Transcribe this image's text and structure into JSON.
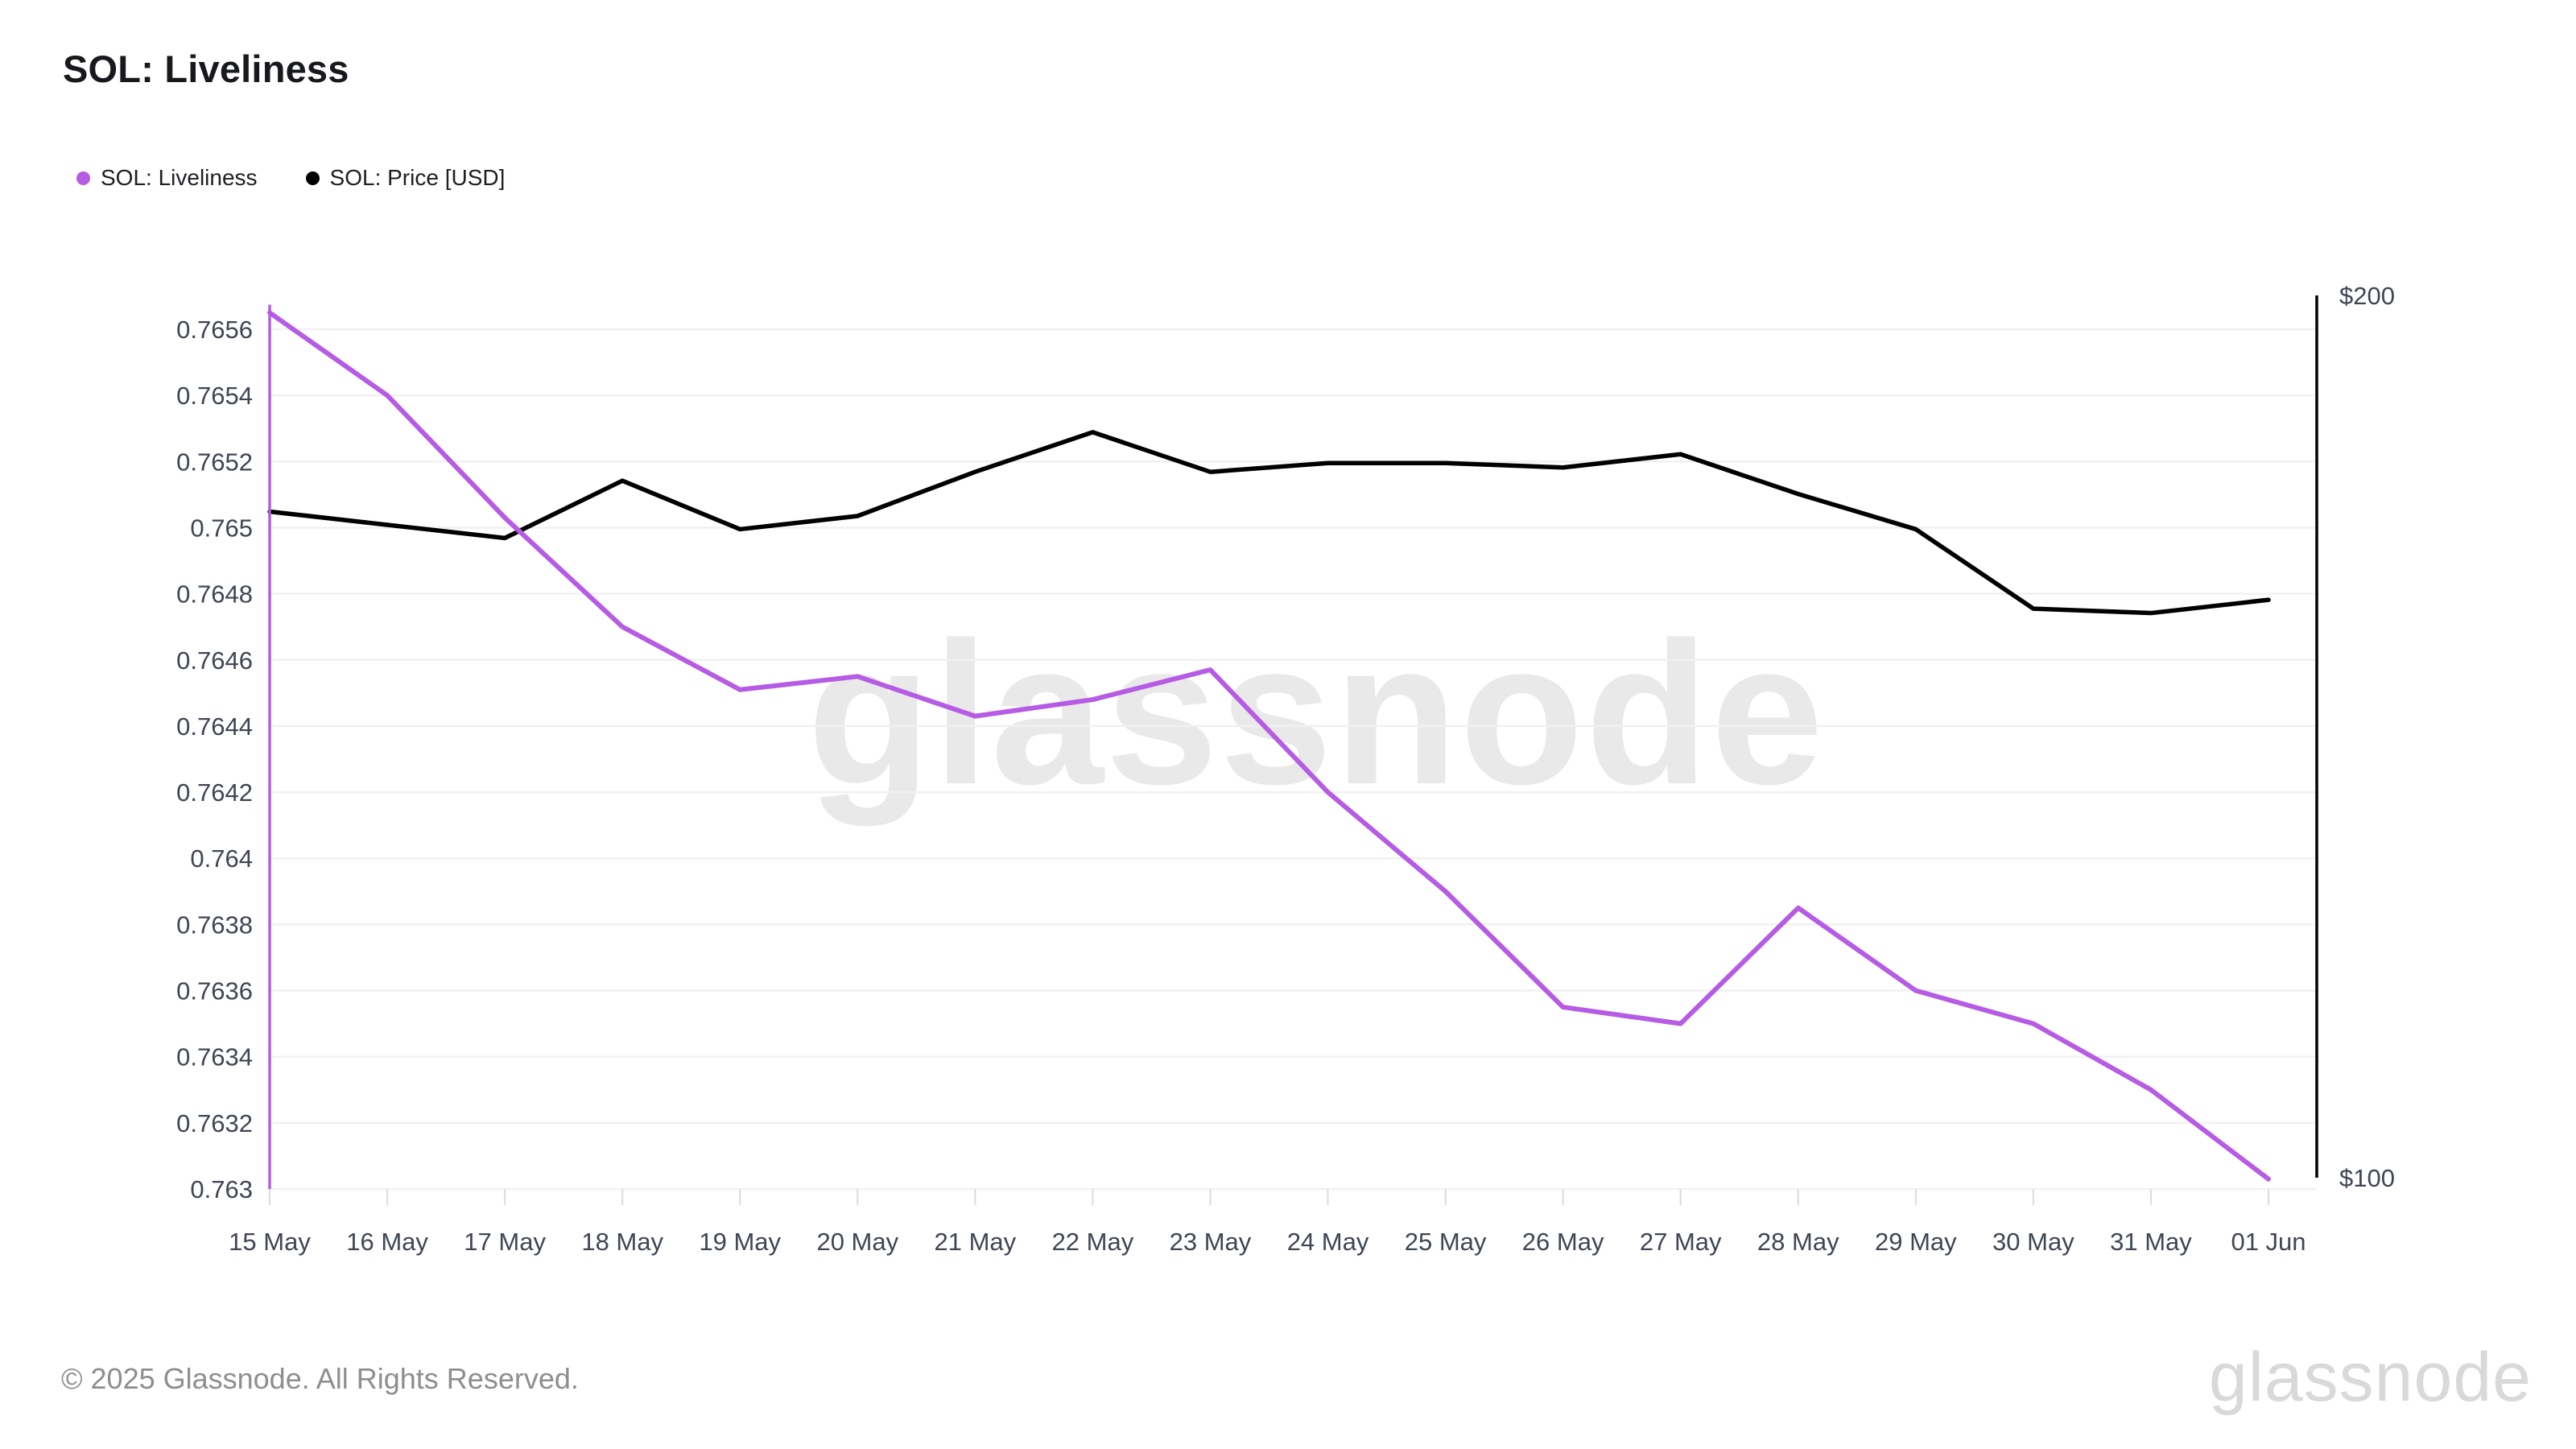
{
  "header": {
    "title": "SOL: Liveliness"
  },
  "legend": [
    {
      "label": "SOL: Liveliness",
      "color": "#b65ce4"
    },
    {
      "label": "SOL: Price [USD]",
      "color": "#000000"
    }
  ],
  "chart_data": {
    "type": "line",
    "title": "SOL: Liveliness",
    "grid": "horizontal",
    "legend_position": "top-left",
    "x_categories": [
      "15 May",
      "16 May",
      "17 May",
      "18 May",
      "19 May",
      "20 May",
      "21 May",
      "22 May",
      "23 May",
      "24 May",
      "25 May",
      "26 May",
      "27 May",
      "28 May",
      "29 May",
      "30 May",
      "31 May",
      "01 Jun"
    ],
    "series": [
      {
        "name": "SOL: Liveliness",
        "axis": "left",
        "color": "#b65ce4",
        "start_spike": true,
        "values": [
          0.76565,
          0.7654,
          0.76503,
          0.7647,
          0.76451,
          0.76455,
          0.76443,
          0.76448,
          0.76457,
          0.7642,
          0.7639,
          0.76355,
          0.7635,
          0.76385,
          0.7636,
          0.7635,
          0.7633,
          0.76303
        ]
      },
      {
        "name": "SOL: Price [USD]",
        "axis": "right",
        "color": "#000000",
        "values": [
          175.5,
          174,
          172.5,
          179,
          173.5,
          175,
          180,
          184.5,
          180,
          181,
          181,
          180.5,
          182,
          177.5,
          173.5,
          164.5,
          164,
          165.5
        ]
      }
    ],
    "left_axis": {
      "tick_labels": [
        "0.7656",
        "0.7654",
        "0.7652",
        "0.765",
        "0.7648",
        "0.7646",
        "0.7644",
        "0.7642",
        "0.764",
        "0.7638",
        "0.7636",
        "0.7634",
        "0.7632",
        "0.763"
      ],
      "tick_values": [
        0.7656,
        0.7654,
        0.7652,
        0.765,
        0.7648,
        0.7646,
        0.7644,
        0.7642,
        0.764,
        0.7638,
        0.7636,
        0.7634,
        0.7632,
        0.763
      ],
      "range": [
        0.763,
        0.7656
      ]
    },
    "right_axis": {
      "tick_labels": [
        "$200",
        "$100"
      ],
      "tick_values": [
        200,
        100
      ],
      "range": [
        100,
        200
      ]
    }
  },
  "watermark": {
    "text": "glassnode"
  },
  "footer": {
    "copyright": "© 2025 Glassnode. All Rights Reserved.",
    "brand": "glassnode"
  }
}
